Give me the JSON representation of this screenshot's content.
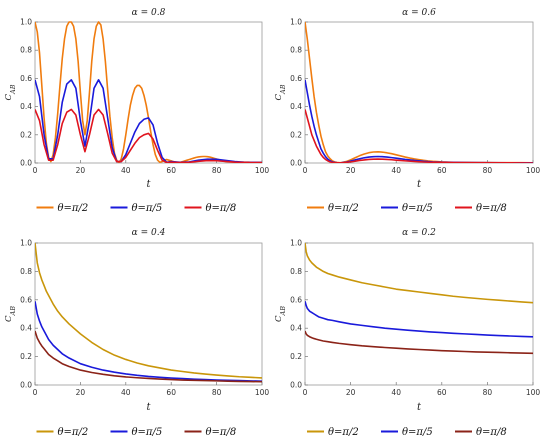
{
  "chart_data": [
    {
      "type": "line",
      "title": "α = 0.8",
      "xlabel": "t",
      "ylabel": "C_AB",
      "xlim": [
        0,
        100
      ],
      "ylim": [
        0,
        1.0
      ],
      "xticks": [
        0,
        20,
        40,
        60,
        80,
        100
      ],
      "yticks": [
        0.0,
        0.2,
        0.4,
        0.6,
        0.8,
        1.0
      ],
      "legend": "below",
      "series": [
        {
          "name": "θ=π/2",
          "color": "#f07c0f",
          "x": [
            0,
            1,
            2,
            3,
            4,
            5,
            6,
            7,
            8,
            9,
            10,
            11,
            12,
            13,
            14,
            15,
            16,
            17,
            18,
            19,
            20,
            21,
            22,
            23,
            24,
            25,
            26,
            27,
            28,
            29,
            30,
            31,
            32,
            33,
            34,
            35,
            36,
            37,
            38,
            39,
            40,
            41,
            42,
            43,
            44,
            45,
            46,
            47,
            48,
            49,
            50,
            51,
            52,
            53,
            54,
            55,
            56,
            57,
            58,
            59,
            60,
            61,
            62,
            63,
            64,
            65,
            66,
            67,
            68,
            69,
            70,
            71,
            72,
            73,
            74,
            75,
            76,
            77,
            78,
            79,
            80,
            81,
            82,
            83,
            84,
            85,
            86,
            87,
            88,
            89,
            90,
            91,
            92,
            93,
            94,
            95,
            96,
            97,
            98,
            99,
            100
          ],
          "y": [
            1.0,
            0.93,
            0.78,
            0.55,
            0.32,
            0.14,
            0.04,
            0.01,
            0.06,
            0.18,
            0.35,
            0.55,
            0.74,
            0.88,
            0.97,
            1.0,
            1.0,
            0.97,
            0.88,
            0.72,
            0.5,
            0.3,
            0.2,
            0.3,
            0.5,
            0.72,
            0.88,
            0.97,
            1.0,
            0.98,
            0.88,
            0.72,
            0.52,
            0.33,
            0.18,
            0.07,
            0.02,
            0.0,
            0.03,
            0.1,
            0.2,
            0.31,
            0.41,
            0.48,
            0.53,
            0.55,
            0.55,
            0.53,
            0.48,
            0.41,
            0.32,
            0.22,
            0.13,
            0.06,
            0.02,
            0.005,
            0.01,
            0.02,
            0.025,
            0.02,
            0.015,
            0.01,
            0.005,
            0.003,
            0.005,
            0.01,
            0.015,
            0.02,
            0.025,
            0.03,
            0.035,
            0.04,
            0.043,
            0.045,
            0.046,
            0.046,
            0.045,
            0.042,
            0.038,
            0.033,
            0.028,
            0.023,
            0.018,
            0.014,
            0.011,
            0.009,
            0.008,
            0.007,
            0.007,
            0.007,
            0.006,
            0.006,
            0.006,
            0.006,
            0.006,
            0.005,
            0.005,
            0.005,
            0.005,
            0.005,
            0.005
          ]
        },
        {
          "name": "θ=π/5",
          "color": "#1a1adb",
          "x": [
            0,
            2,
            4,
            6,
            8,
            10,
            12,
            14,
            16,
            18,
            20,
            22,
            24,
            26,
            28,
            30,
            32,
            34,
            36,
            38,
            40,
            42,
            44,
            46,
            48,
            50,
            52,
            54,
            56,
            58,
            60,
            64,
            68,
            72,
            76,
            80,
            84,
            88,
            92,
            96,
            100
          ],
          "y": [
            0.59,
            0.47,
            0.2,
            0.03,
            0.03,
            0.2,
            0.43,
            0.56,
            0.59,
            0.53,
            0.3,
            0.12,
            0.3,
            0.53,
            0.59,
            0.53,
            0.32,
            0.11,
            0.01,
            0.01,
            0.06,
            0.14,
            0.22,
            0.28,
            0.31,
            0.32,
            0.27,
            0.14,
            0.04,
            0.005,
            0.01,
            0.005,
            0.008,
            0.02,
            0.027,
            0.026,
            0.018,
            0.01,
            0.006,
            0.005,
            0.004
          ]
        },
        {
          "name": "θ=π/8",
          "color": "#e0141e",
          "x": [
            0,
            2,
            4,
            6,
            8,
            10,
            12,
            14,
            16,
            18,
            20,
            22,
            24,
            26,
            28,
            30,
            32,
            34,
            36,
            38,
            40,
            42,
            44,
            46,
            48,
            50,
            52,
            54,
            56,
            58,
            60,
            64,
            68,
            72,
            76,
            80,
            84,
            88,
            92,
            96,
            100
          ],
          "y": [
            0.38,
            0.3,
            0.13,
            0.02,
            0.02,
            0.13,
            0.28,
            0.36,
            0.38,
            0.34,
            0.2,
            0.08,
            0.2,
            0.34,
            0.38,
            0.34,
            0.21,
            0.07,
            0.01,
            0.01,
            0.04,
            0.09,
            0.14,
            0.18,
            0.2,
            0.21,
            0.17,
            0.09,
            0.02,
            0.003,
            0.006,
            0.003,
            0.005,
            0.012,
            0.017,
            0.016,
            0.011,
            0.006,
            0.004,
            0.003,
            0.003
          ]
        }
      ]
    },
    {
      "type": "line",
      "title": "α = 0.6",
      "xlabel": "t",
      "ylabel": "C_AB",
      "xlim": [
        0,
        100
      ],
      "ylim": [
        0,
        1.0
      ],
      "xticks": [
        0,
        20,
        40,
        60,
        80,
        100
      ],
      "yticks": [
        0.0,
        0.2,
        0.4,
        0.6,
        0.8,
        1.0
      ],
      "legend": "below",
      "series": [
        {
          "name": "θ=π/2",
          "color": "#f07c0f",
          "x": [
            0,
            1,
            2,
            3,
            4,
            5,
            6,
            7,
            8,
            9,
            10,
            11,
            12,
            13,
            14,
            15,
            16,
            18,
            20,
            22,
            24,
            26,
            28,
            30,
            32,
            34,
            36,
            38,
            40,
            42,
            44,
            46,
            48,
            50,
            52,
            54,
            56,
            58,
            60,
            65,
            70,
            75,
            80,
            85,
            90,
            95,
            100
          ],
          "y": [
            1.0,
            0.88,
            0.74,
            0.6,
            0.47,
            0.36,
            0.27,
            0.19,
            0.13,
            0.08,
            0.05,
            0.03,
            0.015,
            0.008,
            0.004,
            0.002,
            0.003,
            0.01,
            0.022,
            0.037,
            0.052,
            0.064,
            0.073,
            0.078,
            0.079,
            0.077,
            0.072,
            0.066,
            0.058,
            0.05,
            0.042,
            0.035,
            0.029,
            0.024,
            0.019,
            0.015,
            0.012,
            0.01,
            0.008,
            0.005,
            0.004,
            0.003,
            0.003,
            0.002,
            0.002,
            0.002,
            0.001
          ]
        },
        {
          "name": "θ=π/5",
          "color": "#1a1adb",
          "x": [
            0,
            1,
            2,
            3,
            4,
            5,
            6,
            7,
            8,
            9,
            10,
            11,
            12,
            13,
            14,
            15,
            16,
            18,
            20,
            22,
            24,
            26,
            28,
            30,
            32,
            34,
            36,
            38,
            40,
            44,
            48,
            52,
            56,
            60,
            70,
            80,
            90,
            100
          ],
          "y": [
            0.59,
            0.5,
            0.41,
            0.33,
            0.26,
            0.2,
            0.15,
            0.1,
            0.07,
            0.045,
            0.027,
            0.015,
            0.008,
            0.004,
            0.002,
            0.001,
            0.002,
            0.006,
            0.013,
            0.022,
            0.03,
            0.037,
            0.042,
            0.045,
            0.046,
            0.045,
            0.042,
            0.038,
            0.034,
            0.025,
            0.018,
            0.012,
            0.008,
            0.006,
            0.003,
            0.002,
            0.001,
            0.001
          ]
        },
        {
          "name": "θ=π/8",
          "color": "#e0141e",
          "x": [
            0,
            1,
            2,
            3,
            4,
            5,
            6,
            7,
            8,
            9,
            10,
            11,
            12,
            13,
            14,
            15,
            16,
            18,
            20,
            22,
            24,
            26,
            28,
            30,
            32,
            34,
            36,
            38,
            40,
            44,
            48,
            52,
            56,
            60,
            70,
            80,
            90,
            100
          ],
          "y": [
            0.38,
            0.32,
            0.26,
            0.2,
            0.16,
            0.12,
            0.09,
            0.06,
            0.04,
            0.025,
            0.015,
            0.008,
            0.004,
            0.002,
            0.001,
            0.001,
            0.001,
            0.004,
            0.008,
            0.013,
            0.018,
            0.022,
            0.025,
            0.027,
            0.028,
            0.027,
            0.025,
            0.023,
            0.02,
            0.015,
            0.011,
            0.007,
            0.005,
            0.004,
            0.002,
            0.001,
            0.001,
            0.0
          ]
        }
      ]
    },
    {
      "type": "line",
      "title": "α = 0.4",
      "xlabel": "t",
      "ylabel": "C_AB",
      "xlim": [
        0,
        100
      ],
      "ylim": [
        0,
        1.0
      ],
      "xticks": [
        0,
        20,
        40,
        60,
        80,
        100
      ],
      "yticks": [
        0.0,
        0.2,
        0.4,
        0.6,
        0.8,
        1.0
      ],
      "legend": "below",
      "series": [
        {
          "name": "θ=π/2",
          "color": "#c9960a",
          "x": [
            0,
            1,
            2,
            3,
            4,
            5,
            6,
            8,
            10,
            12,
            15,
            20,
            25,
            30,
            35,
            40,
            45,
            50,
            55,
            60,
            65,
            70,
            75,
            80,
            85,
            90,
            95,
            100
          ],
          "y": [
            1.0,
            0.86,
            0.79,
            0.74,
            0.7,
            0.66,
            0.63,
            0.57,
            0.52,
            0.48,
            0.43,
            0.36,
            0.3,
            0.25,
            0.21,
            0.18,
            0.155,
            0.135,
            0.12,
            0.105,
            0.095,
            0.085,
            0.077,
            0.07,
            0.064,
            0.058,
            0.054,
            0.05
          ]
        },
        {
          "name": "θ=π/5",
          "color": "#1a1adb",
          "x": [
            0,
            1,
            2,
            3,
            4,
            5,
            6,
            8,
            10,
            12,
            15,
            20,
            25,
            30,
            35,
            40,
            45,
            50,
            55,
            60,
            65,
            70,
            75,
            80,
            85,
            90,
            95,
            100
          ],
          "y": [
            0.59,
            0.5,
            0.45,
            0.41,
            0.38,
            0.35,
            0.32,
            0.28,
            0.25,
            0.22,
            0.19,
            0.15,
            0.125,
            0.105,
            0.09,
            0.078,
            0.068,
            0.06,
            0.054,
            0.049,
            0.045,
            0.041,
            0.038,
            0.035,
            0.033,
            0.031,
            0.029,
            0.027
          ]
        },
        {
          "name": "θ=π/8",
          "color": "#8b2318",
          "x": [
            0,
            1,
            2,
            3,
            4,
            5,
            6,
            8,
            10,
            12,
            15,
            20,
            25,
            30,
            35,
            40,
            45,
            50,
            55,
            60,
            65,
            70,
            75,
            80,
            85,
            90,
            95,
            100
          ],
          "y": [
            0.38,
            0.33,
            0.3,
            0.275,
            0.255,
            0.235,
            0.215,
            0.19,
            0.17,
            0.15,
            0.13,
            0.105,
            0.088,
            0.075,
            0.065,
            0.057,
            0.051,
            0.046,
            0.042,
            0.038,
            0.035,
            0.033,
            0.031,
            0.029,
            0.027,
            0.025,
            0.024,
            0.023
          ]
        }
      ]
    },
    {
      "type": "line",
      "title": "α = 0.2",
      "xlabel": "t",
      "ylabel": "C_AB",
      "xlim": [
        0,
        100
      ],
      "ylim": [
        0,
        1.0
      ],
      "xticks": [
        0,
        20,
        40,
        60,
        80,
        100
      ],
      "yticks": [
        0.0,
        0.2,
        0.4,
        0.6,
        0.8,
        1.0
      ],
      "legend": "below",
      "series": [
        {
          "name": "θ=π/2",
          "color": "#c9960a",
          "x": [
            0,
            0.5,
            1,
            2,
            3,
            4,
            5,
            6,
            8,
            10,
            12,
            15,
            20,
            25,
            30,
            35,
            40,
            45,
            50,
            55,
            60,
            65,
            70,
            75,
            80,
            85,
            90,
            95,
            100
          ],
          "y": [
            1.0,
            0.94,
            0.91,
            0.88,
            0.86,
            0.845,
            0.83,
            0.82,
            0.8,
            0.785,
            0.775,
            0.76,
            0.74,
            0.72,
            0.705,
            0.69,
            0.675,
            0.665,
            0.655,
            0.645,
            0.635,
            0.625,
            0.617,
            0.61,
            0.603,
            0.597,
            0.591,
            0.585,
            0.58
          ]
        },
        {
          "name": "θ=π/5",
          "color": "#1a1adb",
          "x": [
            0,
            0.5,
            1,
            2,
            3,
            4,
            5,
            6,
            8,
            10,
            12,
            15,
            20,
            25,
            30,
            35,
            40,
            45,
            50,
            55,
            60,
            65,
            70,
            75,
            80,
            85,
            90,
            95,
            100
          ],
          "y": [
            0.59,
            0.56,
            0.54,
            0.52,
            0.51,
            0.5,
            0.49,
            0.48,
            0.47,
            0.46,
            0.455,
            0.445,
            0.43,
            0.42,
            0.41,
            0.4,
            0.393,
            0.386,
            0.38,
            0.374,
            0.369,
            0.364,
            0.36,
            0.356,
            0.352,
            0.348,
            0.345,
            0.342,
            0.339
          ]
        },
        {
          "name": "θ=π/8",
          "color": "#8b2318",
          "x": [
            0,
            0.5,
            1,
            2,
            3,
            4,
            5,
            6,
            8,
            10,
            12,
            15,
            20,
            25,
            30,
            35,
            40,
            45,
            50,
            55,
            60,
            65,
            70,
            75,
            80,
            85,
            90,
            95,
            100
          ],
          "y": [
            0.38,
            0.36,
            0.35,
            0.34,
            0.333,
            0.327,
            0.322,
            0.318,
            0.31,
            0.305,
            0.3,
            0.293,
            0.284,
            0.276,
            0.27,
            0.264,
            0.259,
            0.254,
            0.25,
            0.246,
            0.242,
            0.239,
            0.236,
            0.233,
            0.231,
            0.229,
            0.227,
            0.225,
            0.223
          ]
        }
      ]
    }
  ]
}
